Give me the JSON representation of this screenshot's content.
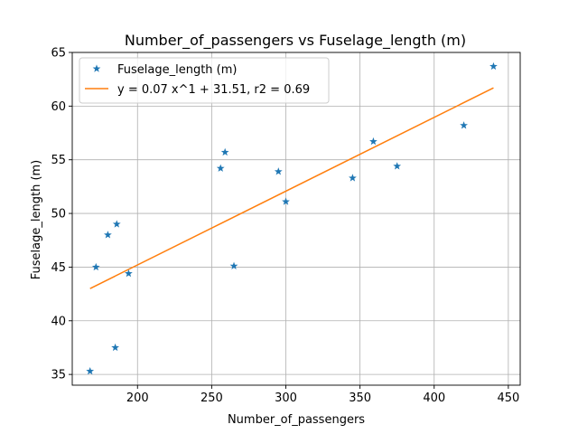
{
  "chart_data": {
    "type": "scatter",
    "title": "Number_of_passengers vs Fuselage_length (m)",
    "xlabel": "Number_of_passengers",
    "ylabel": "Fuselage_length (m)",
    "xlim": [
      156,
      458
    ],
    "ylim": [
      34,
      65
    ],
    "xticks": [
      200,
      250,
      300,
      350,
      400,
      450
    ],
    "yticks": [
      35,
      40,
      45,
      50,
      55,
      60,
      65
    ],
    "grid": true,
    "legend_position": "top-left",
    "series": [
      {
        "name": "Fuselage_length (m)",
        "kind": "scatter",
        "marker": "star",
        "color": "#1f77b4",
        "points": [
          {
            "x": 168,
            "y": 35.3
          },
          {
            "x": 172,
            "y": 45.0
          },
          {
            "x": 180,
            "y": 48.0
          },
          {
            "x": 185,
            "y": 37.5
          },
          {
            "x": 186,
            "y": 49.0
          },
          {
            "x": 194,
            "y": 44.4
          },
          {
            "x": 256,
            "y": 54.2
          },
          {
            "x": 259,
            "y": 55.7
          },
          {
            "x": 265,
            "y": 45.1
          },
          {
            "x": 295,
            "y": 53.9
          },
          {
            "x": 300,
            "y": 51.1
          },
          {
            "x": 345,
            "y": 53.3
          },
          {
            "x": 359,
            "y": 56.7
          },
          {
            "x": 375,
            "y": 54.4
          },
          {
            "x": 420,
            "y": 58.2
          },
          {
            "x": 440,
            "y": 63.7
          }
        ]
      },
      {
        "name": "y = 0.07 x^1 + 31.51, r2 = 0.69",
        "kind": "line",
        "color": "#ff7f0e",
        "points": [
          {
            "x": 168,
            "y": 43.0
          },
          {
            "x": 440,
            "y": 61.7
          }
        ]
      }
    ]
  }
}
